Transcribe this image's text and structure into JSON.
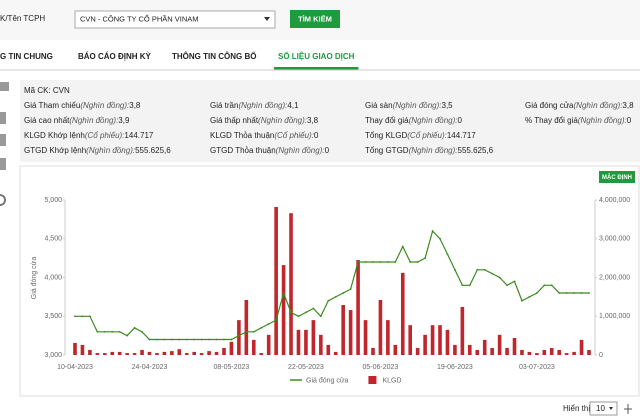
{
  "search": {
    "label": "K/Tên TCPH",
    "selected": "CVN - CÔNG TY CỔ PHẦN VINAM",
    "button": "TÌM KIẾM"
  },
  "tabs": [
    "G TIN CHUNG",
    "BÁO CÁO ĐỊNH KỲ",
    "THÔNG TIN CÔNG BỐ",
    "SỐ LIỆU GIAO DỊCH"
  ],
  "active_tab": 3,
  "summary": {
    "code": "Mã CK: CVN",
    "rows": [
      [
        {
          "label": "Giá Tham chiếu",
          "unit": "(Nghìn đồng):",
          "value": "3,8"
        },
        {
          "label": "Giá trần",
          "unit": "(Nghìn đồng):",
          "value": "4,1"
        },
        {
          "label": "Giá sàn",
          "unit": "(Nghìn đồng):",
          "value": "3,5"
        },
        {
          "label": "Giá đóng cửa",
          "unit": "(Nghìn đồng):",
          "value": "3,8"
        }
      ],
      [
        {
          "label": "Giá cao nhất",
          "unit": "(Nghìn đồng):",
          "value": "3,9"
        },
        {
          "label": "Giá thấp nhất",
          "unit": "(Nghìn đồng):",
          "value": "3,8"
        },
        {
          "label": "Thay đổi giá",
          "unit": "(Nghìn đồng):",
          "value": "0"
        },
        {
          "label": "% Thay đổi giá",
          "unit": "(Nghìn đồng):",
          "value": "0"
        }
      ],
      [
        {
          "label": "KLGD Khớp lệnh",
          "unit": "(Cổ phiếu):",
          "value": "144.717"
        },
        {
          "label": "KLGD Thỏa thuận",
          "unit": "(Cổ phiếu):",
          "value": "0"
        },
        {
          "label": "Tổng KLGD",
          "unit": "(Cổ phiếu):",
          "value": "144.717"
        }
      ],
      [
        {
          "label": "GTGD Khớp lệnh",
          "unit": "(Nghìn đồng):",
          "value": "555.625,6"
        },
        {
          "label": "GTGD Thỏa thuận",
          "unit": "(Nghìn đồng):",
          "value": "0"
        },
        {
          "label": "Tổng GTGD",
          "unit": "(Nghìn đồng):",
          "value": "555.625,6"
        }
      ]
    ]
  },
  "default_button": "MẶC ĐỊNH",
  "pager": {
    "label": "Hiển thị",
    "size": "10"
  },
  "chart_data": {
    "type": "combo",
    "y_label": "Giá đóng cửa",
    "categories": [
      "10-04-2023",
      null,
      null,
      null,
      null,
      null,
      null,
      null,
      null,
      null,
      "24-04-2023",
      null,
      null,
      null,
      null,
      null,
      null,
      null,
      null,
      null,
      null,
      "08-05-2023",
      null,
      null,
      null,
      null,
      null,
      null,
      null,
      null,
      null,
      "22-05-2023",
      null,
      null,
      null,
      null,
      null,
      null,
      null,
      null,
      null,
      "05-06-2023",
      null,
      null,
      null,
      null,
      null,
      null,
      null,
      null,
      null,
      "19-06-2023",
      null,
      null,
      null,
      null,
      null,
      null,
      null,
      null,
      null,
      null,
      "03-07-2023",
      null,
      null,
      null,
      null,
      null,
      null,
      null
    ],
    "series": [
      {
        "name": "Giá đóng cửa",
        "type": "line",
        "color": "#3a8a1e",
        "values": [
          3500,
          3500,
          3500,
          3300,
          3300,
          3300,
          3300,
          3250,
          3350,
          3300,
          3200,
          3200,
          3200,
          3200,
          3200,
          3200,
          3200,
          3200,
          3200,
          3200,
          3200,
          3200,
          3250,
          3300,
          3300,
          3350,
          3400,
          3450,
          3800,
          3550,
          3500,
          3550,
          3600,
          3500,
          3700,
          3750,
          3800,
          3850,
          4200,
          4200,
          4200,
          4200,
          4200,
          4200,
          4400,
          4200,
          4200,
          4250,
          4600,
          4500,
          4300,
          4100,
          3900,
          3900,
          4100,
          4100,
          4050,
          4000,
          3900,
          3950,
          3700,
          3750,
          3800,
          3900,
          3900,
          3800,
          3800,
          3800,
          3800,
          3800
        ]
      },
      {
        "name": "KLGD",
        "type": "bar",
        "color": "#c0262c",
        "axis": "y2",
        "values": [
          310000,
          260000,
          130000,
          50000,
          50000,
          80000,
          80000,
          50000,
          50000,
          130000,
          80000,
          50000,
          80000,
          100000,
          150000,
          50000,
          80000,
          50000,
          100000,
          80000,
          180000,
          340000,
          900000,
          1420000,
          390000,
          50000,
          520000,
          3820000,
          2320000,
          3660000,
          650000,
          650000,
          900000,
          520000,
          260000,
          80000,
          1290000,
          1160000,
          2450000,
          900000,
          180000,
          1420000,
          900000,
          260000,
          2120000,
          770000,
          180000,
          520000,
          770000,
          770000,
          650000,
          260000,
          1240000,
          260000,
          130000,
          390000,
          180000,
          520000,
          180000,
          440000,
          130000,
          80000,
          50000,
          130000,
          180000,
          130000,
          50000,
          80000,
          390000,
          130000
        ]
      }
    ],
    "ylim": [
      3000,
      5000
    ],
    "yticks": [
      {
        "value": 3000,
        "label": "3,000"
      },
      {
        "value": 3500,
        "label": "3,500"
      },
      {
        "value": 4000,
        "label": "4,000"
      },
      {
        "value": 4500,
        "label": "4,500"
      },
      {
        "value": 5000,
        "label": "5,000"
      }
    ],
    "y2lim": [
      0,
      4000000
    ],
    "y2ticks": [
      0,
      {
        "value": 1000000,
        "label": "1,000,000"
      },
      {
        "value": 2000000,
        "label": "2,000,000"
      },
      {
        "value": 3000000,
        "label": "3,000,000"
      },
      {
        "value": 4000000,
        "label": "4,000,000"
      }
    ],
    "legend": "bottom"
  }
}
